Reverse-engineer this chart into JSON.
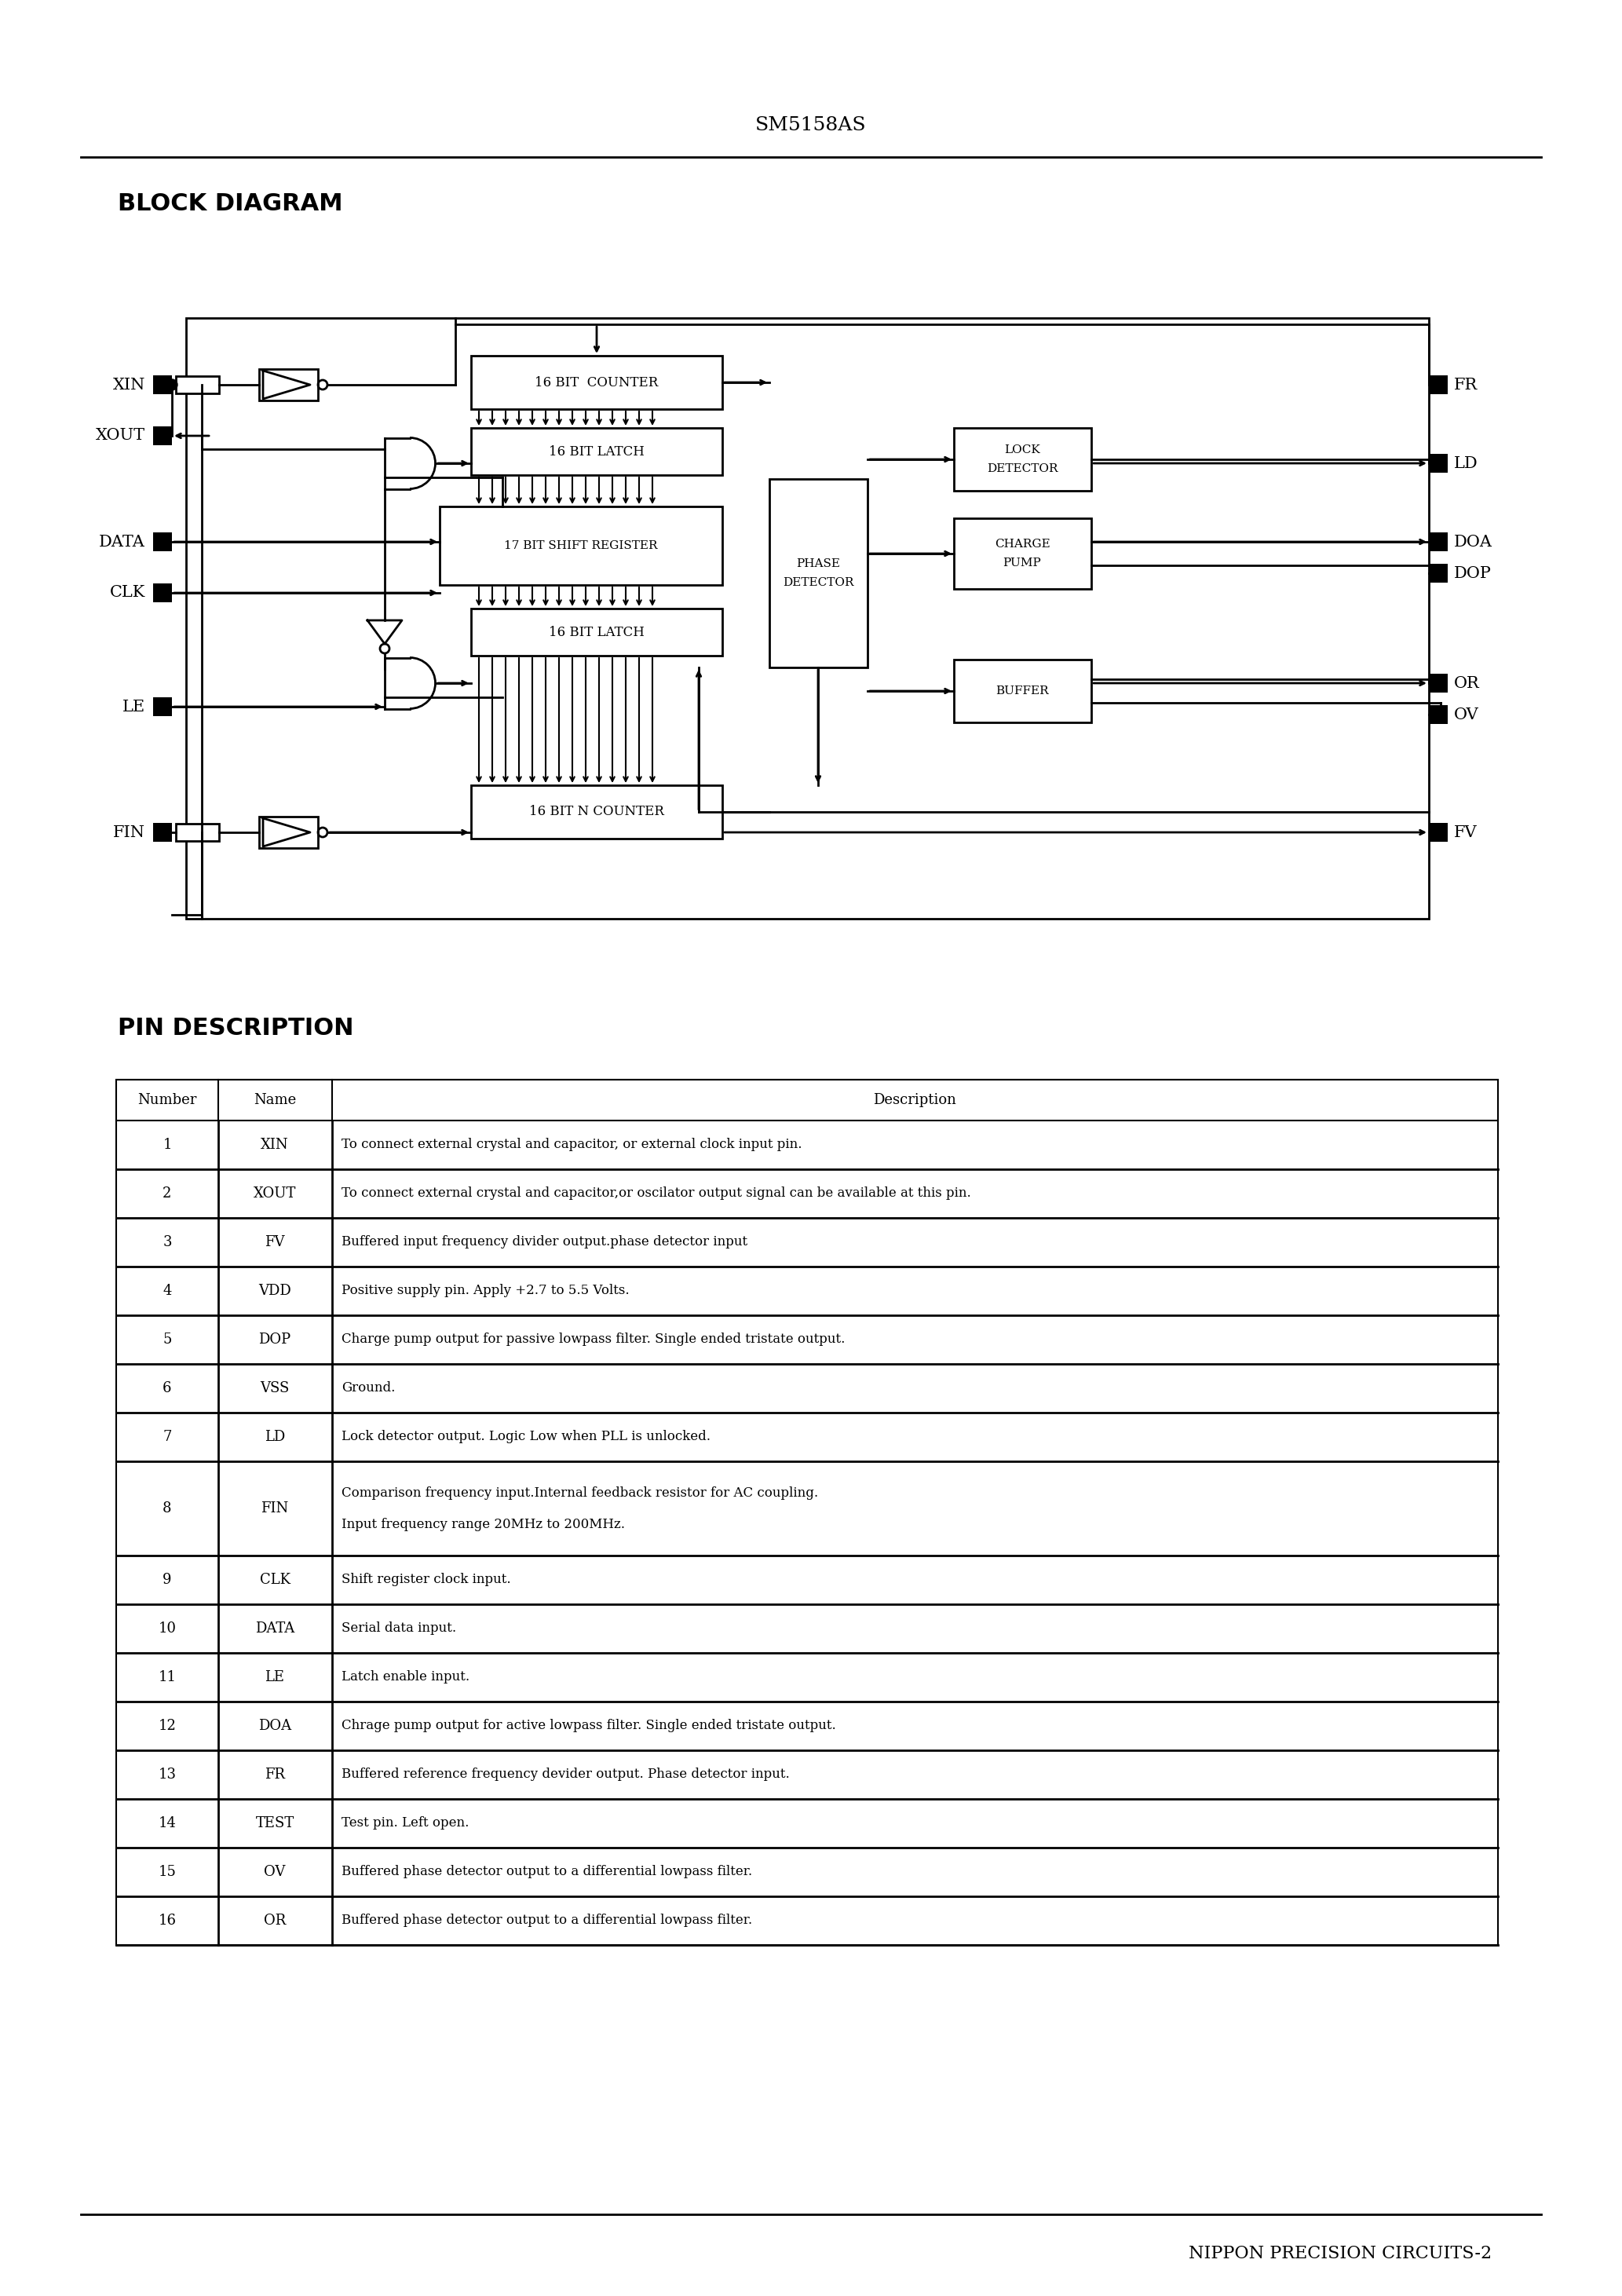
{
  "page_title": "SM5158AS",
  "footer_text": "NIPPON PRECISION CIRCUITS-2",
  "section1_title": "BLOCK DIAGRAM",
  "section2_title": "PIN DESCRIPTION",
  "bg_color": "#ffffff",
  "pin_table": {
    "headers": [
      "Number",
      "Name",
      "Description"
    ],
    "rows": [
      [
        "1",
        "XIN",
        "To connect external crystal and capacitor, or external clock input pin."
      ],
      [
        "2",
        "XOUT",
        "To connect external crystal and capacitor,or oscilator output signal can be available at this pin."
      ],
      [
        "3",
        "FV",
        "Buffered input frequency divider output.phase detector input"
      ],
      [
        "4",
        "VDD",
        "Positive supply pin. Apply +2.7 to 5.5 Volts."
      ],
      [
        "5",
        "DOP",
        "Charge pump output for passive lowpass filter. Single ended tristate output."
      ],
      [
        "6",
        "VSS",
        "Ground."
      ],
      [
        "7",
        "LD",
        "Lock detector output. Logic Low when PLL is unlocked."
      ],
      [
        "8",
        "FIN",
        "Comparison frequency input.Internal feedback resistor for AC coupling.\nInput frequency range 20MHz to 200MHz."
      ],
      [
        "9",
        "CLK",
        "Shift register clock input."
      ],
      [
        "10",
        "DATA",
        "Serial data input."
      ],
      [
        "11",
        "LE",
        "Latch enable input."
      ],
      [
        "12",
        "DOA",
        "Chrage pump output for active lowpass filter. Single ended tristate output."
      ],
      [
        "13",
        "FR",
        "Buffered reference frequency devider output. Phase detector input."
      ],
      [
        "14",
        "TEST",
        "Test pin. Left open."
      ],
      [
        "15",
        "OV",
        "Buffered phase detector output to a differential lowpass filter."
      ],
      [
        "16",
        "OR",
        "Buffered phase detector output to a differential lowpass filter."
      ]
    ]
  }
}
